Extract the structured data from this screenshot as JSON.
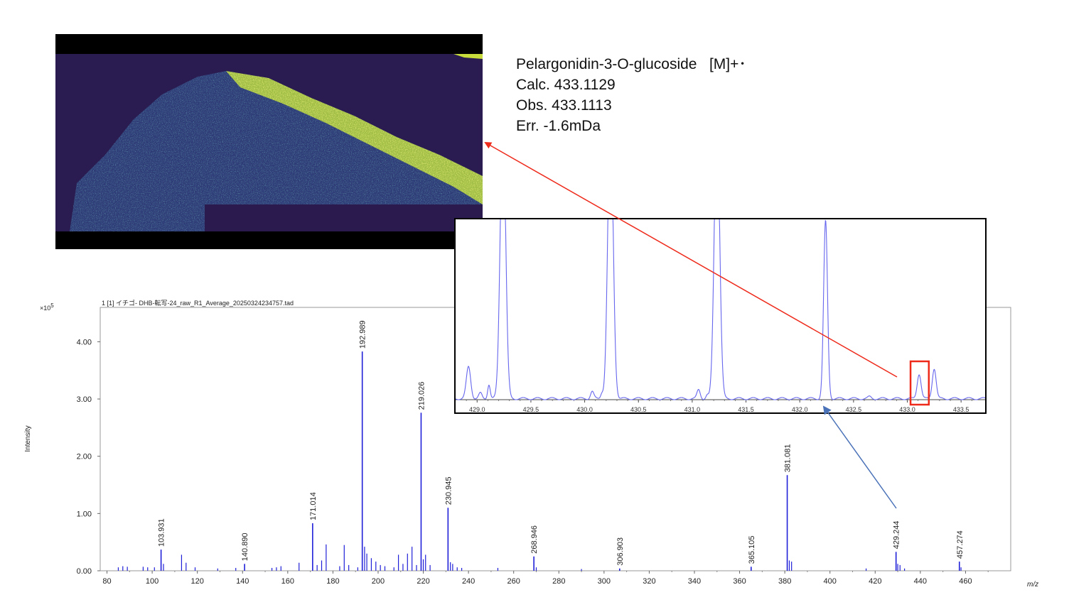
{
  "annotation": {
    "line1": "Pelargonidin-3-O-glucoside   [M]+･",
    "line2": "Calc. 433.1129",
    "line3": "Obs. 433.1113",
    "line4": "Err. -1.6mDa"
  },
  "chart_data": [
    {
      "type": "bar",
      "title": "1 [1] イチゴ- DHB-転写-24_raw_R1_Average_20250324234757.tad",
      "ylabel": "Intensity",
      "xlabel": "m/z",
      "y_multiplier": "×10^5",
      "xlim": [
        77,
        480
      ],
      "ylim": [
        0,
        4.6
      ],
      "x_ticks": [
        80,
        100,
        120,
        140,
        160,
        180,
        200,
        220,
        240,
        260,
        280,
        300,
        320,
        340,
        360,
        380,
        400,
        420,
        440,
        460
      ],
      "y_ticks": [
        0.0,
        1.0,
        2.0,
        3.0,
        4.0
      ],
      "color": "#2020d8",
      "labeled_peaks": [
        {
          "x": 103.931,
          "y": 0.37,
          "label": "103.931"
        },
        {
          "x": 140.89,
          "y": 0.12,
          "label": "140.890"
        },
        {
          "x": 171.014,
          "y": 0.83,
          "label": "171.014"
        },
        {
          "x": 192.989,
          "y": 3.83,
          "label": "192.989"
        },
        {
          "x": 219.026,
          "y": 2.76,
          "label": "219.026"
        },
        {
          "x": 230.945,
          "y": 1.1,
          "label": "230.945"
        },
        {
          "x": 268.946,
          "y": 0.25,
          "label": "268.946"
        },
        {
          "x": 306.903,
          "y": 0.04,
          "label": "306.903"
        },
        {
          "x": 365.105,
          "y": 0.07,
          "label": "365.105"
        },
        {
          "x": 381.081,
          "y": 1.67,
          "label": "381.081"
        },
        {
          "x": 429.244,
          "y": 0.33,
          "label": "429.244"
        },
        {
          "x": 457.274,
          "y": 0.16,
          "label": "457.274"
        }
      ],
      "minor_peaks": [
        {
          "x": 85,
          "y": 0.06
        },
        {
          "x": 87,
          "y": 0.08
        },
        {
          "x": 89,
          "y": 0.07
        },
        {
          "x": 96,
          "y": 0.07
        },
        {
          "x": 98,
          "y": 0.06
        },
        {
          "x": 101,
          "y": 0.06
        },
        {
          "x": 105,
          "y": 0.12
        },
        {
          "x": 113,
          "y": 0.28
        },
        {
          "x": 115,
          "y": 0.14
        },
        {
          "x": 119,
          "y": 0.06
        },
        {
          "x": 129,
          "y": 0.04
        },
        {
          "x": 137,
          "y": 0.05
        },
        {
          "x": 153,
          "y": 0.05
        },
        {
          "x": 155,
          "y": 0.06
        },
        {
          "x": 157,
          "y": 0.08
        },
        {
          "x": 165,
          "y": 0.14
        },
        {
          "x": 173,
          "y": 0.1
        },
        {
          "x": 175,
          "y": 0.18
        },
        {
          "x": 177,
          "y": 0.46
        },
        {
          "x": 183,
          "y": 0.08
        },
        {
          "x": 185,
          "y": 0.45
        },
        {
          "x": 187,
          "y": 0.1
        },
        {
          "x": 191,
          "y": 0.06
        },
        {
          "x": 194,
          "y": 0.42
        },
        {
          "x": 195,
          "y": 0.3
        },
        {
          "x": 197,
          "y": 0.22
        },
        {
          "x": 199,
          "y": 0.16
        },
        {
          "x": 201,
          "y": 0.1
        },
        {
          "x": 203,
          "y": 0.08
        },
        {
          "x": 207,
          "y": 0.06
        },
        {
          "x": 209,
          "y": 0.28
        },
        {
          "x": 211,
          "y": 0.12
        },
        {
          "x": 213,
          "y": 0.3
        },
        {
          "x": 215,
          "y": 0.42
        },
        {
          "x": 217,
          "y": 0.1
        },
        {
          "x": 220,
          "y": 0.2
        },
        {
          "x": 221,
          "y": 0.28
        },
        {
          "x": 223,
          "y": 0.1
        },
        {
          "x": 232,
          "y": 0.15
        },
        {
          "x": 233,
          "y": 0.12
        },
        {
          "x": 235,
          "y": 0.06
        },
        {
          "x": 237,
          "y": 0.05
        },
        {
          "x": 253,
          "y": 0.05
        },
        {
          "x": 270,
          "y": 0.06
        },
        {
          "x": 290,
          "y": 0.03
        },
        {
          "x": 382,
          "y": 0.18
        },
        {
          "x": 383,
          "y": 0.16
        },
        {
          "x": 416,
          "y": 0.04
        },
        {
          "x": 430,
          "y": 0.12
        },
        {
          "x": 431,
          "y": 0.1
        },
        {
          "x": 433,
          "y": 0.04
        },
        {
          "x": 458,
          "y": 0.06
        }
      ]
    },
    {
      "type": "line",
      "description_axis": "m/z",
      "xlim": [
        428.8,
        433.75
      ],
      "x_ticks": [
        429.0,
        429.5,
        430.0,
        430.5,
        431.0,
        431.5,
        432.0,
        432.5,
        433.0,
        433.5
      ],
      "x_tick_labels": [
        "429.0",
        "429.5",
        "430.0",
        "430.5",
        "431.0",
        "431.5",
        "432.0",
        "432.5",
        "433.0",
        "433.5"
      ],
      "color": "#6666ee",
      "peaks": [
        {
          "x": 428.92,
          "y": 0.18,
          "w": 0.02
        },
        {
          "x": 429.03,
          "y": 0.03,
          "w": 0.015
        },
        {
          "x": 429.11,
          "y": 0.08,
          "w": 0.012
        },
        {
          "x": 429.24,
          "y": 1.6,
          "w": 0.025
        },
        {
          "x": 430.07,
          "y": 0.04,
          "w": 0.015
        },
        {
          "x": 430.16,
          "y": 0.03,
          "w": 0.012
        },
        {
          "x": 430.24,
          "y": 1.6,
          "w": 0.025
        },
        {
          "x": 431.06,
          "y": 0.05,
          "w": 0.015
        },
        {
          "x": 431.14,
          "y": 0.02,
          "w": 0.012
        },
        {
          "x": 431.23,
          "y": 1.6,
          "w": 0.025
        },
        {
          "x": 432.24,
          "y": 1.0,
          "w": 0.018
        },
        {
          "x": 432.65,
          "y": 0.01,
          "w": 0.015
        },
        {
          "x": 433.11,
          "y": 0.14,
          "w": 0.018
        },
        {
          "x": 433.25,
          "y": 0.17,
          "w": 0.018
        }
      ],
      "highlight_x": [
        433.03,
        433.2
      ]
    }
  ],
  "colors": {
    "spectrum": "#2020d8",
    "zoom_line": "#6666ee",
    "red_arrow": "#ee2a1b",
    "blue_arrow": "#4a72b8",
    "image_bg": "#2a1a4e"
  }
}
